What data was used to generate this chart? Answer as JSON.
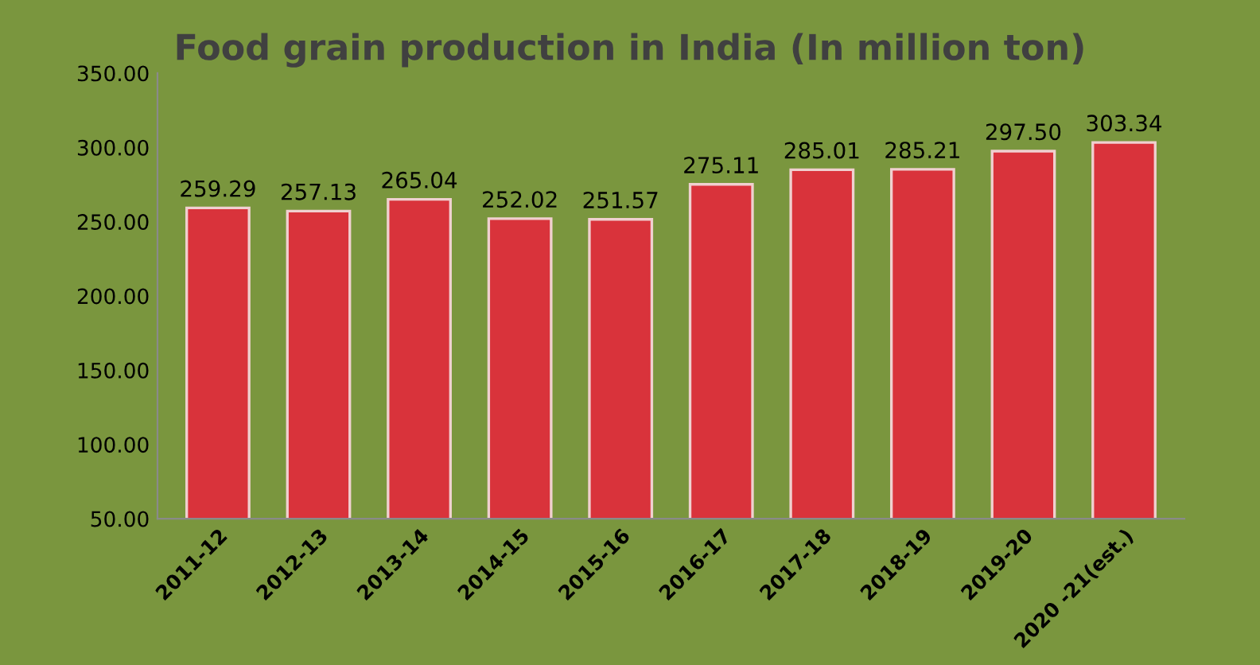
{
  "chart_data": {
    "type": "bar",
    "title": "Food grain production in India (In million ton)",
    "categories": [
      "2011-12",
      "2012-13",
      "2013-14",
      "2014-15",
      "2015-16",
      "2016-17",
      "2017-18",
      "2018-19",
      "2019-20",
      "2020 -21(est.)"
    ],
    "values": [
      259.29,
      257.13,
      265.04,
      252.02,
      251.57,
      275.11,
      285.01,
      285.21,
      297.5,
      303.34
    ],
    "value_labels": [
      "259.29",
      "257.13",
      "265.04",
      "252.02",
      "251.57",
      "275.11",
      "285.01",
      "285.21",
      "297.50",
      "303.34"
    ],
    "color": "#d9333b",
    "ylim": [
      50,
      350
    ],
    "yticks": [
      {
        "value": 50,
        "label": "50.00"
      },
      {
        "value": 100,
        "label": "100.00"
      },
      {
        "value": 150,
        "label": "150.00"
      },
      {
        "value": 200,
        "label": "200.00"
      },
      {
        "value": 250,
        "label": "250.00"
      },
      {
        "value": 300,
        "label": "300.00"
      },
      {
        "value": 350,
        "label": "350.00"
      }
    ],
    "grid": false,
    "legend": false
  }
}
